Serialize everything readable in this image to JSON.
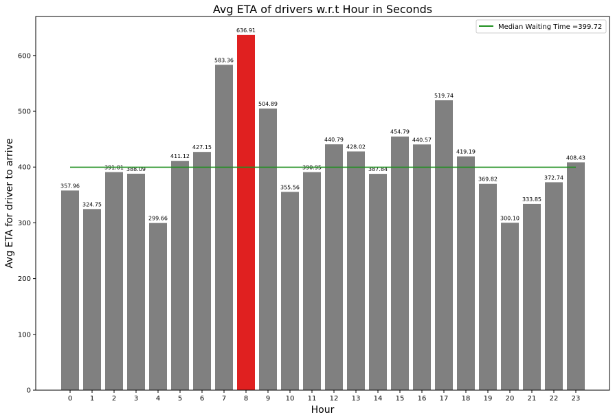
{
  "chart_data": {
    "type": "bar",
    "title": "Avg ETA of drivers w.r.t Hour in Seconds",
    "xlabel": "Hour",
    "ylabel": "Avg ETA for driver to arrive",
    "categories": [
      "0",
      "1",
      "2",
      "3",
      "4",
      "5",
      "6",
      "7",
      "8",
      "9",
      "10",
      "11",
      "12",
      "13",
      "14",
      "15",
      "16",
      "17",
      "18",
      "19",
      "20",
      "21",
      "22",
      "23"
    ],
    "values": [
      357.96,
      324.75,
      391.01,
      388.09,
      299.66,
      411.12,
      427.15,
      583.36,
      636.91,
      504.89,
      355.56,
      390.95,
      440.79,
      428.02,
      387.84,
      454.79,
      440.57,
      519.74,
      419.19,
      369.82,
      300.1,
      333.85,
      372.74,
      408.43
    ],
    "data_labels": [
      "357.96",
      "324.75",
      "391.01",
      "388.09",
      "299.66",
      "411.12",
      "427.15",
      "583.36",
      "636.91",
      "504.89",
      "355.56",
      "390.95",
      "440.79",
      "428.02",
      "387.84",
      "454.79",
      "440.57",
      "519.74",
      "419.19",
      "369.82",
      "300.10",
      "333.85",
      "372.74",
      "408.43"
    ],
    "highlight_index": 8,
    "ylim": [
      0,
      670
    ],
    "yticks": [
      0,
      100,
      200,
      300,
      400,
      500,
      600
    ],
    "median_line": {
      "value": 399.72,
      "label": "Median Waiting Time =399.72"
    },
    "legend": {
      "position": "top-right"
    },
    "grid": false,
    "colors": {
      "bar": "#808080",
      "highlight": "#e02020",
      "median_line": "#1f8f1f",
      "axis": "#000000"
    }
  }
}
